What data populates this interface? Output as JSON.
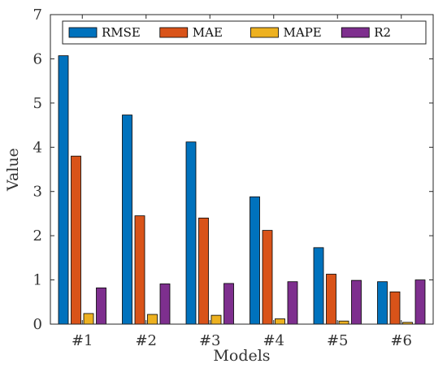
{
  "chart_data": {
    "type": "bar",
    "title": "",
    "xlabel": "Models",
    "ylabel": "Value",
    "categories": [
      "#1",
      "#2",
      "#3",
      "#4",
      "#5",
      "#6"
    ],
    "series": [
      {
        "name": "RMSE",
        "color": "#0072BD",
        "values": [
          6.07,
          4.73,
          4.12,
          2.88,
          1.73,
          0.96
        ]
      },
      {
        "name": "MAE",
        "color": "#D95319",
        "values": [
          3.8,
          2.45,
          2.4,
          2.12,
          1.13,
          0.73
        ]
      },
      {
        "name": "MAPE",
        "color": "#EDB120",
        "values": [
          0.24,
          0.22,
          0.2,
          0.12,
          0.07,
          0.04
        ]
      },
      {
        "name": "R2",
        "color": "#7E2F8E",
        "values": [
          0.82,
          0.91,
          0.92,
          0.96,
          0.99,
          1.0
        ]
      }
    ],
    "ylim": [
      0,
      7
    ],
    "yticks": [
      0,
      1,
      2,
      3,
      4,
      5,
      6,
      7
    ],
    "grid": false,
    "legend_position": "top"
  }
}
